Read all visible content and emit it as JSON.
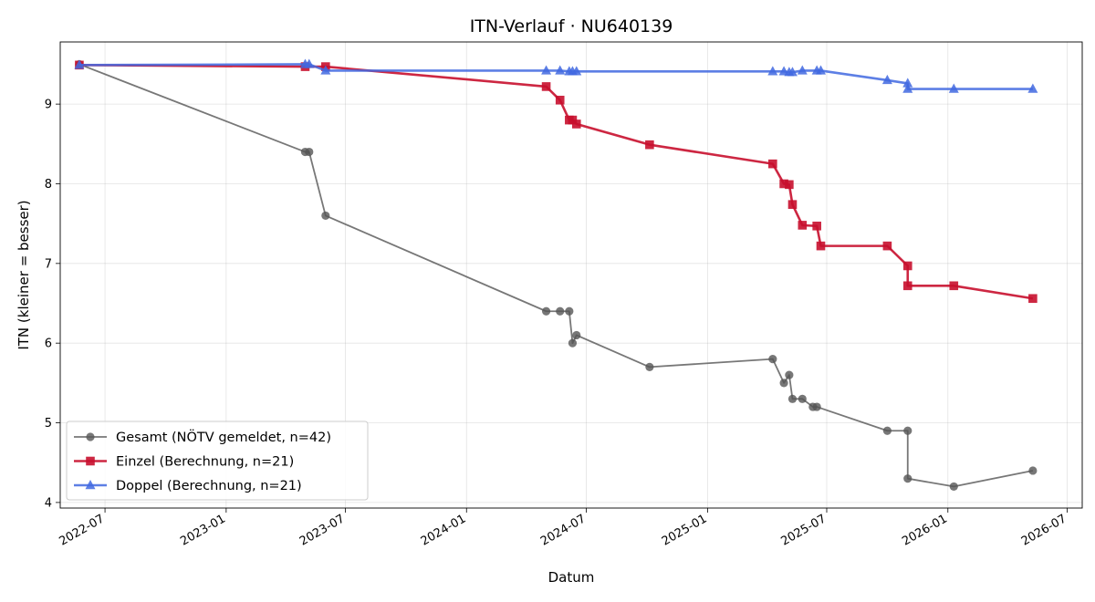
{
  "chart_data": {
    "type": "line",
    "title": "ITN-Verlauf · NU640139",
    "xlabel": "Datum",
    "ylabel": "ITN  (kleiner = besser)",
    "x_axis": {
      "kind": "date",
      "min": "2022-04-24",
      "max": "2026-07-24"
    },
    "ylim": [
      3.93,
      9.78
    ],
    "grid": true,
    "legend_position": "lower-left",
    "x_ticks": [
      "2022-07",
      "2023-01",
      "2023-07",
      "2024-01",
      "2024-07",
      "2025-01",
      "2025-07",
      "2026-01",
      "2026-07"
    ],
    "y_ticks": [
      4,
      5,
      6,
      7,
      8,
      9
    ],
    "series": [
      {
        "name": "Gesamt (NÖTV gemeldet, n=42)",
        "color": "#555555",
        "opacity": 0.8,
        "marker": "circle",
        "points": [
          [
            "2022-05-23",
            9.5
          ],
          [
            "2023-05-01",
            8.4
          ],
          [
            "2023-05-07",
            8.4
          ],
          [
            "2023-06-01",
            7.6
          ],
          [
            "2024-05-01",
            6.4
          ],
          [
            "2024-05-22",
            6.4
          ],
          [
            "2024-06-05",
            6.4
          ],
          [
            "2024-06-10",
            6.0
          ],
          [
            "2024-06-16",
            6.1
          ],
          [
            "2024-10-05",
            5.7
          ],
          [
            "2025-04-10",
            5.8
          ],
          [
            "2025-04-27",
            5.5
          ],
          [
            "2025-05-05",
            5.6
          ],
          [
            "2025-05-10",
            5.3
          ],
          [
            "2025-05-25",
            5.3
          ],
          [
            "2025-06-10",
            5.2
          ],
          [
            "2025-06-16",
            5.2
          ],
          [
            "2025-10-01",
            4.9
          ],
          [
            "2025-11-01",
            4.9
          ],
          [
            "2025-11-01",
            4.3
          ],
          [
            "2026-01-10",
            4.2
          ],
          [
            "2026-05-10",
            4.4
          ]
        ]
      },
      {
        "name": "Einzel (Berechnung, n=21)",
        "color": "#c8102e",
        "opacity": 0.9,
        "marker": "square",
        "points": [
          [
            "2022-05-23",
            9.49
          ],
          [
            "2023-05-01",
            9.47
          ],
          [
            "2023-06-01",
            9.47
          ],
          [
            "2024-05-01",
            9.22
          ],
          [
            "2024-05-22",
            9.05
          ],
          [
            "2024-06-05",
            8.8
          ],
          [
            "2024-06-10",
            8.8
          ],
          [
            "2024-06-16",
            8.75
          ],
          [
            "2024-10-05",
            8.49
          ],
          [
            "2025-04-10",
            8.25
          ],
          [
            "2025-04-27",
            8.0
          ],
          [
            "2025-05-05",
            7.99
          ],
          [
            "2025-05-10",
            7.74
          ],
          [
            "2025-05-25",
            7.48
          ],
          [
            "2025-06-16",
            7.47
          ],
          [
            "2025-06-22",
            7.22
          ],
          [
            "2025-10-01",
            7.22
          ],
          [
            "2025-11-01",
            6.97
          ],
          [
            "2025-11-01",
            6.72
          ],
          [
            "2026-01-10",
            6.72
          ],
          [
            "2026-05-10",
            6.56
          ]
        ]
      },
      {
        "name": "Doppel (Berechnung, n=21)",
        "color": "#4169e1",
        "opacity": 0.85,
        "marker": "triangle",
        "points": [
          [
            "2022-05-23",
            9.49
          ],
          [
            "2023-05-01",
            9.5
          ],
          [
            "2023-05-07",
            9.5
          ],
          [
            "2023-06-01",
            9.42
          ],
          [
            "2024-05-01",
            9.42
          ],
          [
            "2024-05-22",
            9.42
          ],
          [
            "2024-06-05",
            9.41
          ],
          [
            "2024-06-10",
            9.41
          ],
          [
            "2024-06-16",
            9.41
          ],
          [
            "2025-04-10",
            9.41
          ],
          [
            "2025-04-27",
            9.41
          ],
          [
            "2025-05-05",
            9.4
          ],
          [
            "2025-05-10",
            9.4
          ],
          [
            "2025-05-25",
            9.42
          ],
          [
            "2025-06-16",
            9.42
          ],
          [
            "2025-06-22",
            9.42
          ],
          [
            "2025-10-01",
            9.3
          ],
          [
            "2025-11-01",
            9.26
          ],
          [
            "2025-11-01",
            9.19
          ],
          [
            "2026-01-10",
            9.19
          ],
          [
            "2026-05-10",
            9.19
          ]
        ]
      }
    ]
  }
}
